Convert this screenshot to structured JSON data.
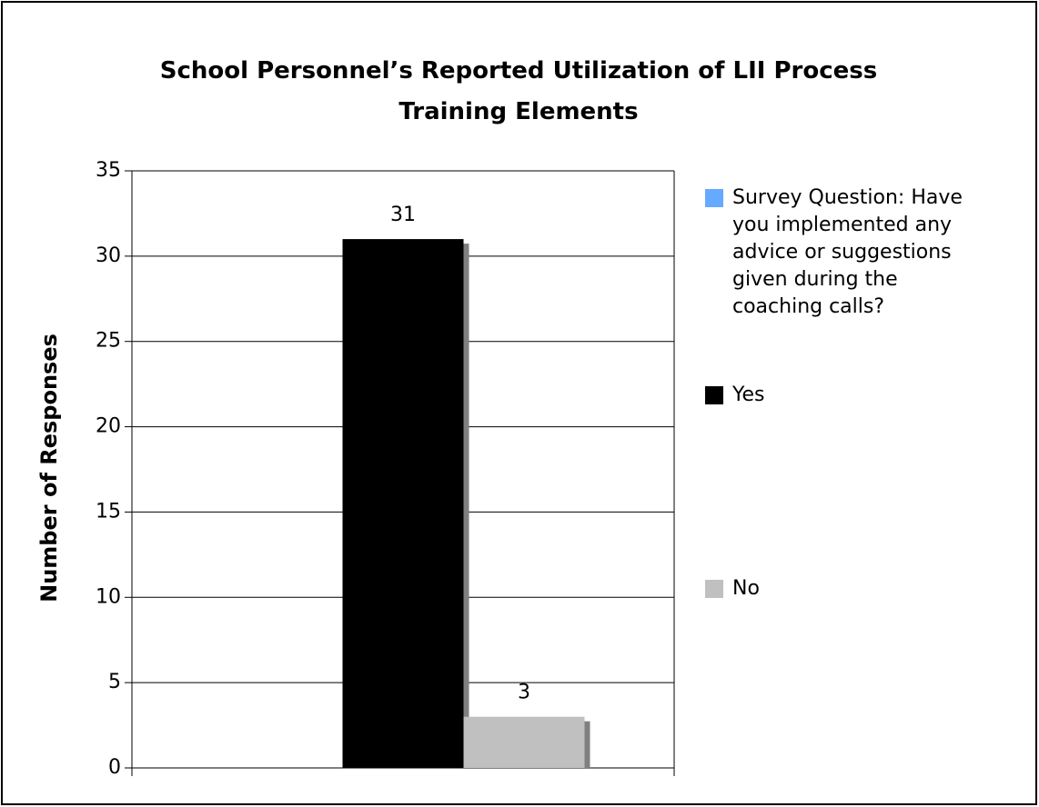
{
  "chart_data": {
    "type": "bar",
    "title": "School Personnel’s Reported Utilization of LII Process Training Elements",
    "y_label": "Number of Responses",
    "categories": [
      null
    ],
    "series": [
      {
        "name": "Survey Question: Have you implemented any advice or suggestions given during the coaching calls?",
        "color": "#66aaff",
        "values": [
          null
        ]
      },
      {
        "name": "Yes",
        "color": "#000000",
        "values": [
          31
        ]
      },
      {
        "name": "No",
        "color": "#c0c0c0",
        "values": [
          3
        ]
      }
    ],
    "ylim": [
      0,
      35
    ],
    "yticks": [
      0,
      5,
      10,
      15,
      20,
      25,
      30,
      35
    ],
    "grid": true,
    "legend": "right"
  }
}
